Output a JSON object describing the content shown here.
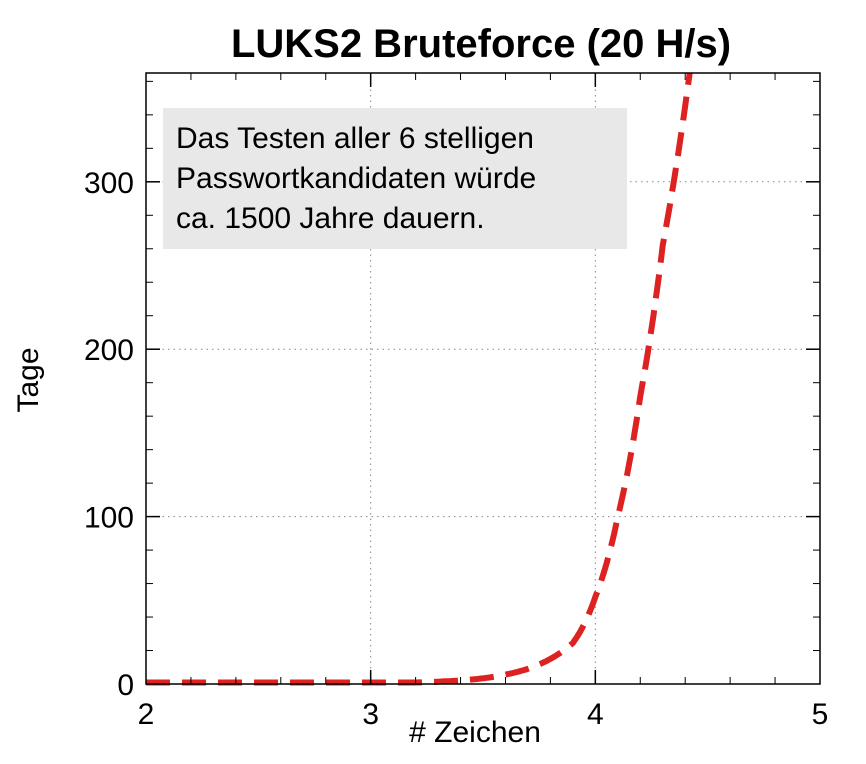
{
  "chart_data": {
    "type": "line",
    "title": "LUKS2 Bruteforce (20 H/s)",
    "xlabel": "# Zeichen",
    "ylabel": "Tage",
    "xlim": [
      2,
      5
    ],
    "ylim": [
      0,
      365
    ],
    "xticks": [
      2,
      3,
      4,
      5
    ],
    "yticks": [
      0,
      100,
      200,
      300
    ],
    "x_tick_labels": [
      "2",
      "3",
      "4",
      "5"
    ],
    "y_tick_labels": [
      "0",
      "100",
      "200",
      "300"
    ],
    "grid": true,
    "grid_style": "dotted",
    "series": [
      {
        "color": "#dd2222",
        "line_style": "dashed",
        "x": [
          2.0,
          2.5,
          3.0,
          3.2,
          3.4,
          3.5,
          3.6,
          3.7,
          3.8,
          3.9,
          4.0,
          4.1,
          4.2,
          4.3,
          4.42
        ],
        "y": [
          0.0,
          0.02,
          0.4,
          0.9,
          2.1,
          3.4,
          5.6,
          9.1,
          15.0,
          24.5,
          52.0,
          100.0,
          172.0,
          262.0,
          365.0
        ]
      }
    ],
    "annotation": {
      "lines": [
        "Das Testen aller 6 stelligen",
        "Passwortkandidaten würde",
        "ca. 1500 Jahre dauern."
      ],
      "background": "#e8e8e8",
      "position": "top-left"
    }
  }
}
